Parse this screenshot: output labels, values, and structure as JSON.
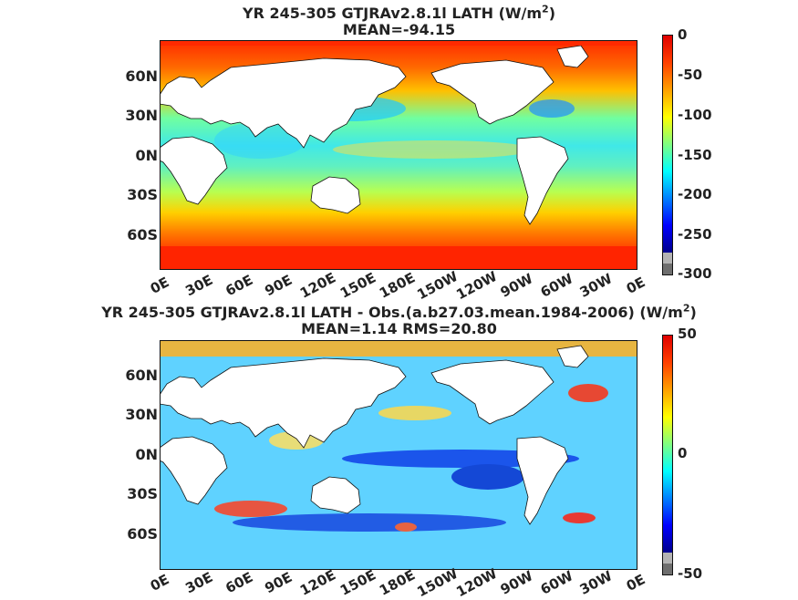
{
  "panels": [
    {
      "title_html": "YR 245-305 GTJRAv2.8.1l  LATH (W/m<sup>2</sup>)",
      "title": "YR 245-305 GTJRAv2.8.1l  LATH (W/m2)",
      "stats": "MEAN=-94.15",
      "colorbar_ticks": [
        "0",
        "-50",
        "-100",
        "-150",
        "-200",
        "-250",
        "-300"
      ],
      "colorbar_range": [
        -300,
        0
      ]
    },
    {
      "title_html": "YR 245-305 GTJRAv2.8.1l LATH - Obs.(a.b27.03.mean.1984-2006) (W/m<sup>2</sup>)",
      "title": "YR 245-305 GTJRAv2.8.1l LATH - Obs.(a.b27.03.mean.1984-2006) (W/m2)",
      "stats": "MEAN=1.14 RMS=20.80",
      "colorbar_ticks": [
        "50",
        "0",
        "-50"
      ],
      "colorbar_range": [
        -50,
        50
      ]
    }
  ],
  "lat_labels": [
    "60N",
    "30N",
    "0N",
    "30S",
    "60S"
  ],
  "lon_labels": [
    "0E",
    "30E",
    "60E",
    "90E",
    "120E",
    "150E",
    "180E",
    "150W",
    "120W",
    "90W",
    "60W",
    "30W",
    "0E"
  ],
  "colormap": "jet"
}
